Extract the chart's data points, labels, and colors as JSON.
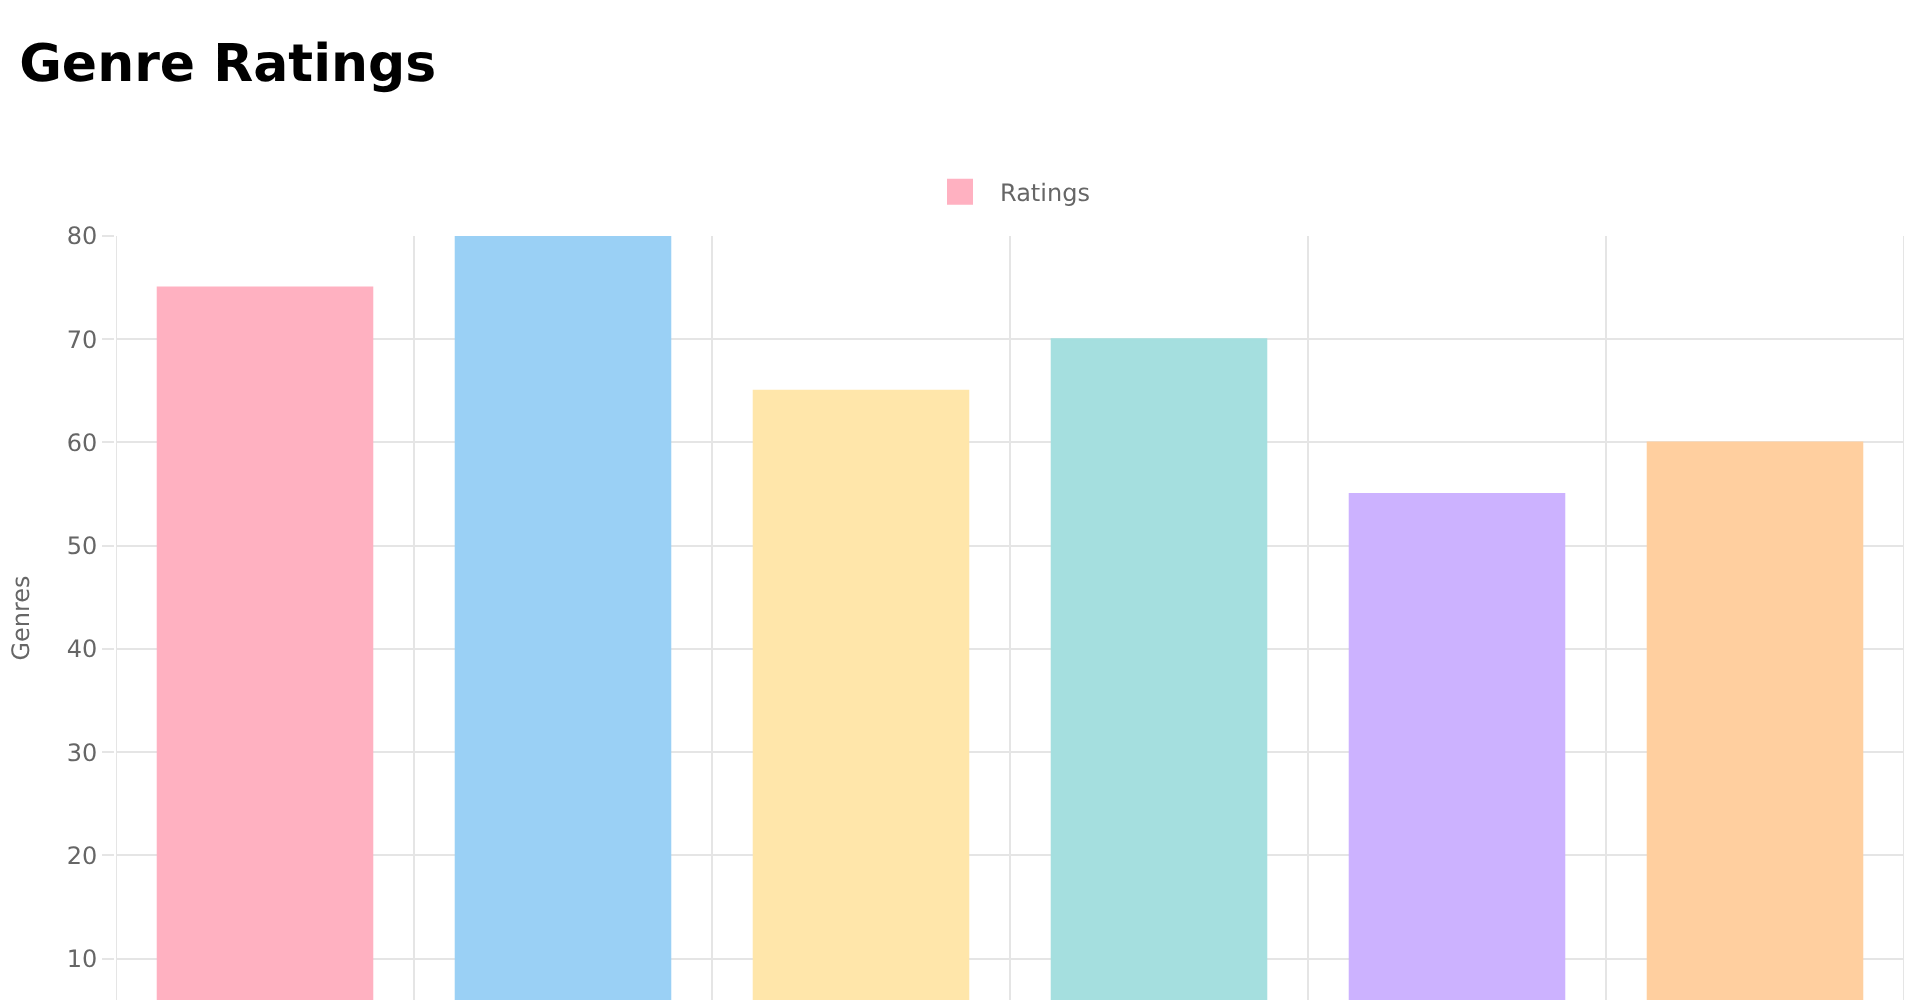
{
  "chart_data": {
    "type": "bar",
    "title": "Genre Ratings",
    "ylabel": "Genres",
    "categories": [
      null,
      null,
      null,
      null,
      null,
      null
    ],
    "series": [
      {
        "name": "Ratings",
        "values": [
          75,
          80,
          65,
          70,
          55,
          60
        ],
        "colors": [
          "#ffb1c1",
          "#9ad0f5",
          "#ffe6aa",
          "#a5dfdf",
          "#ccb2ff",
          "#ffcf9f"
        ]
      }
    ],
    "ylim": [
      6,
      80
    ],
    "yticks": [
      10,
      20,
      30,
      40,
      50,
      60,
      70,
      80
    ],
    "grid": true,
    "legend": "top",
    "tick_labels": "y"
  }
}
